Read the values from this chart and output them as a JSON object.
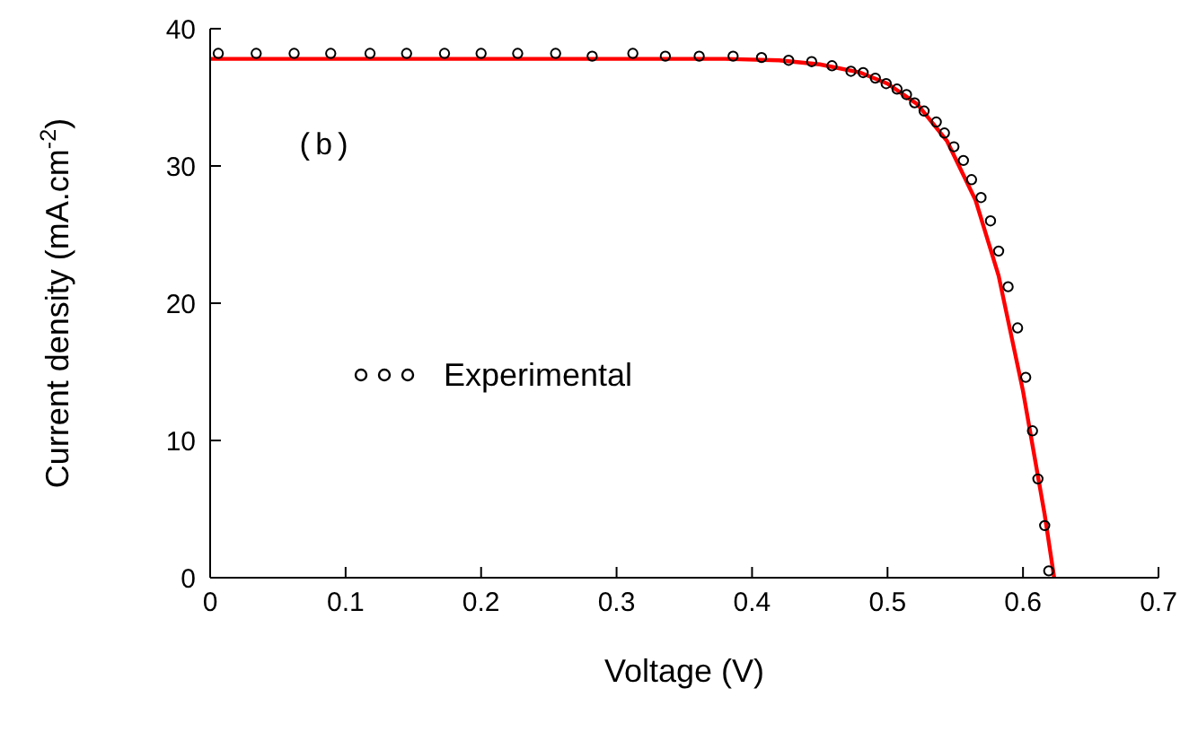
{
  "chart_data": {
    "type": "scatter",
    "xlabel": "Voltage (V)",
    "ylabel": "Current density (mA.cm$^{-2}$)",
    "xlim": [
      0,
      0.7
    ],
    "xticks": [
      0,
      0.1,
      0.2,
      0.3,
      0.4,
      0.5,
      0.6,
      0.7
    ],
    "ylim": [
      0,
      40
    ],
    "yticks": [
      0,
      10,
      20,
      30,
      40
    ],
    "grid": false,
    "legend": "left",
    "annotations": [
      "(b)"
    ],
    "series": [
      {
        "name": "Experimental",
        "marker": "circle",
        "color": "#000000",
        "x": [
          0.006,
          0.034,
          0.062,
          0.089,
          0.118,
          0.145,
          0.173,
          0.2,
          0.227,
          0.255,
          0.282,
          0.312,
          0.336,
          0.361,
          0.386,
          0.407,
          0.427,
          0.444,
          0.459,
          0.473,
          0.482,
          0.491,
          0.499,
          0.507,
          0.514,
          0.52,
          0.527,
          0.536,
          0.542,
          0.549,
          0.556,
          0.562,
          0.569,
          0.576,
          0.582,
          0.589,
          0.596,
          0.602,
          0.607,
          0.611,
          0.616,
          0.619
        ],
        "values": [
          38.2,
          38.2,
          38.2,
          38.2,
          38.2,
          38.2,
          38.2,
          38.2,
          38.2,
          38.2,
          38.0,
          38.2,
          38.0,
          38.0,
          38.0,
          37.9,
          37.7,
          37.6,
          37.3,
          36.9,
          36.8,
          36.4,
          36.0,
          35.6,
          35.2,
          34.6,
          34.0,
          33.2,
          32.4,
          31.4,
          30.4,
          29.0,
          27.7,
          26.0,
          23.8,
          21.2,
          18.2,
          14.6,
          10.7,
          7.2,
          3.8,
          0.5
        ]
      },
      {
        "type": "line",
        "color": "#ff0000",
        "line_style": "solid",
        "marker": "none",
        "x": [
          0,
          0.2,
          0.38,
          0.42,
          0.45,
          0.48,
          0.5,
          0.522,
          0.544,
          0.565,
          0.582,
          0.6,
          0.616,
          0.623
        ],
        "values": [
          37.8,
          37.8,
          37.8,
          37.7,
          37.4,
          36.8,
          36.0,
          34.5,
          31.8,
          27.5,
          22.0,
          13.6,
          4.6,
          0
        ]
      }
    ]
  }
}
